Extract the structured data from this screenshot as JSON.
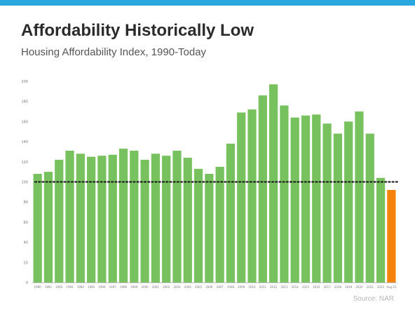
{
  "header": {
    "title": "Affordability Historically Low",
    "subtitle": "Housing Affordability Index, 1990-Today"
  },
  "source": "Source: NAR",
  "colors": {
    "bar": "#77c25e",
    "highlight": "#f5820b",
    "reference_line": "#222222",
    "top_bar": "#29a8e0"
  },
  "chart_data": {
    "type": "bar",
    "title": "Affordability Historically Low",
    "subtitle": "Housing Affordability Index, 1990-Today",
    "xlabel": "",
    "ylabel": "",
    "ylim": [
      0,
      200
    ],
    "yticks": [
      0,
      20,
      40,
      60,
      80,
      100,
      120,
      140,
      160,
      180,
      200
    ],
    "grid": false,
    "reference_line": 100,
    "highlight_category": "Aug-23",
    "categories": [
      "1990",
      "1991",
      "1992",
      "1993",
      "1994",
      "1995",
      "1996",
      "1997",
      "1998",
      "1999",
      "2000",
      "2001",
      "2002",
      "2003",
      "2004",
      "2005",
      "2006",
      "2007",
      "2008",
      "2009",
      "2010",
      "2011",
      "2012",
      "2013",
      "2014",
      "2015",
      "2016",
      "2017",
      "2018",
      "2019",
      "2020",
      "2021",
      "2022",
      "Aug-23"
    ],
    "values": [
      108,
      110,
      122,
      131,
      128,
      125,
      126,
      127,
      133,
      131,
      122,
      128,
      126,
      131,
      124,
      113,
      108,
      115,
      138,
      169,
      172,
      186,
      197,
      176,
      164,
      166,
      167,
      158,
      148,
      160,
      170,
      148,
      104,
      92
    ]
  }
}
